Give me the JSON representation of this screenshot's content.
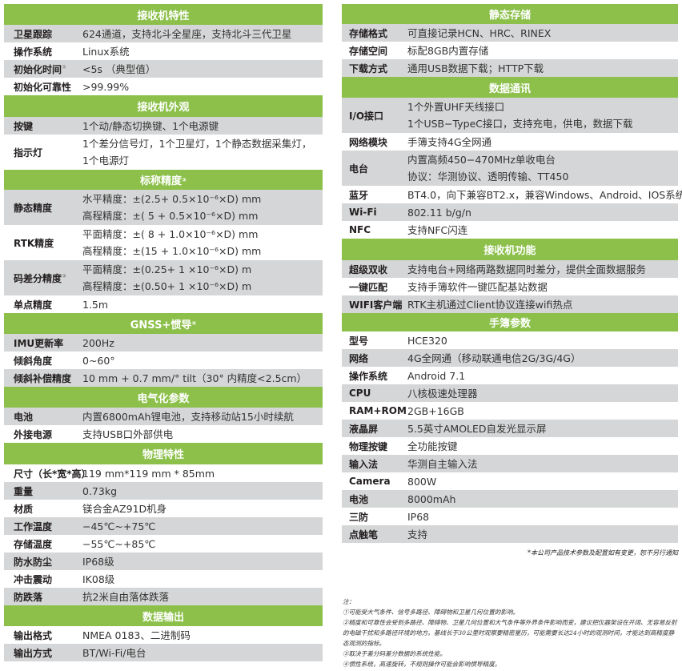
{
  "colors": {
    "header_green": "#8cc04b",
    "row_gray": "#d5d6d7"
  },
  "left_sections": [
    {
      "title": "接收机特性",
      "sup": "",
      "rows": [
        {
          "label": "卫星跟踪",
          "sup": "",
          "lines": [
            "624通道，支持北斗全星座，支持北斗三代卫星"
          ]
        },
        {
          "label": "操作系统",
          "sup": "",
          "lines": [
            "Linux系统"
          ]
        },
        {
          "label": "初始化时间",
          "sup": "①",
          "lines": [
            "<5s （典型值）"
          ]
        },
        {
          "label": "初始化可靠性",
          "sup": "",
          "lines": [
            ">99.99%"
          ]
        }
      ]
    },
    {
      "title": "接收机外观",
      "sup": "",
      "rows": [
        {
          "label": "按键",
          "sup": "",
          "lines": [
            "1个动/静态切换键、1个电源键"
          ]
        },
        {
          "label": "指示灯",
          "sup": "",
          "lines": [
            "1个差分信号灯，1个卫星灯，1个静态数据采集灯，",
            "1个电源灯"
          ]
        }
      ]
    },
    {
      "title": "标称精度",
      "sup": "②",
      "rows": [
        {
          "label": "静态精度",
          "sup": "",
          "lines": [
            "水平精度：±(2.5+ 0.5×10⁻⁶×D) mm",
            "高程精度：±( 5 + 0.5×10⁻⁶×D) mm"
          ]
        },
        {
          "label": "RTK精度",
          "sup": "",
          "lines": [
            "平面精度：±( 8 + 1.0×10⁻⁶×D) mm",
            "高程精度：±(15 + 1.0×10⁻⁶×D) mm"
          ]
        },
        {
          "label": "码差分精度",
          "sup": "③",
          "lines": [
            "平面精度：±(0.25+ 1 ×10⁻⁶×D) m",
            "高程精度：±(0.50+ 1 ×10⁻⁶×D) m"
          ]
        },
        {
          "label": "单点精度",
          "sup": "",
          "lines": [
            "1.5m"
          ]
        }
      ]
    },
    {
      "title": "GNSS+惯导",
      "sup": "④",
      "rows": [
        {
          "label": "IMU更新率",
          "sup": "",
          "lines": [
            "200Hz"
          ]
        },
        {
          "label": "倾斜角度",
          "sup": "",
          "lines": [
            "0~60°"
          ]
        },
        {
          "label": "倾斜补偿精度",
          "sup": "",
          "lines": [
            "10 mm + 0.7 mm/°  tilt（30° 内精度<2.5cm）"
          ]
        }
      ]
    },
    {
      "title": "电气化参数",
      "sup": "",
      "rows": [
        {
          "label": "电池",
          "sup": "",
          "lines": [
            "内置6800mAh锂电池，支持移动站15小时续航"
          ]
        },
        {
          "label": "外接电源",
          "sup": "",
          "lines": [
            "支持USB口外部供电"
          ]
        }
      ]
    },
    {
      "title": "物理特性",
      "sup": "",
      "rows": [
        {
          "label": "尺寸（长*宽*高）",
          "sup": "",
          "lines": [
            "119 mm*119 mm * 85mm"
          ]
        },
        {
          "label": "重量",
          "sup": "",
          "lines": [
            "0.73kg"
          ]
        },
        {
          "label": "材质",
          "sup": "",
          "lines": [
            "镁合金AZ91D机身"
          ]
        },
        {
          "label": "工作温度",
          "sup": "",
          "lines": [
            "−45℃~+75℃"
          ]
        },
        {
          "label": "存储温度",
          "sup": "",
          "lines": [
            "−55℃~+85℃"
          ]
        },
        {
          "label": "防水防尘",
          "sup": "",
          "lines": [
            "IP68级"
          ]
        },
        {
          "label": "冲击震动",
          "sup": "",
          "lines": [
            "IK08级"
          ]
        },
        {
          "label": "防跌落",
          "sup": "",
          "lines": [
            "抗2米自由落体跌落"
          ]
        }
      ]
    },
    {
      "title": "数据输出",
      "sup": "",
      "rows": [
        {
          "label": "输出格式",
          "sup": "",
          "lines": [
            "NMEA 0183、二进制码"
          ]
        },
        {
          "label": "输出方式",
          "sup": "",
          "lines": [
            "BT/Wi-Fi/电台"
          ]
        }
      ]
    }
  ],
  "right_sections": [
    {
      "title": "静态存储",
      "sup": "",
      "rows": [
        {
          "label": "存储格式",
          "sup": "",
          "lines": [
            "可直接记录HCN、HRC、RINEX"
          ]
        },
        {
          "label": "存储空间",
          "sup": "",
          "lines": [
            "标配8GB内置存储"
          ]
        },
        {
          "label": "下载方式",
          "sup": "",
          "lines": [
            "通用USB数据下载；HTTP下载"
          ]
        }
      ]
    },
    {
      "title": "数据通讯",
      "sup": "",
      "rows": [
        {
          "label": "I/O接口",
          "sup": "",
          "lines": [
            "1个外置UHF天线接口",
            "1个USB−TypeC接口，支持充电，供电，数据下载"
          ]
        },
        {
          "label": "网络模块",
          "sup": "",
          "lines": [
            "手簿支持4G全网通"
          ]
        },
        {
          "label": "电台",
          "sup": "",
          "lines": [
            "内置高频450−470MHz单收电台",
            "协议：华测协议、透明传输、TT450"
          ]
        },
        {
          "label": "蓝牙",
          "sup": "",
          "lines": [
            "BT4.0，向下兼容BT2.x，兼容Windows、Android、IOS系统"
          ]
        },
        {
          "label": "Wi-Fi",
          "sup": "",
          "lines": [
            "802.11 b/g/n"
          ]
        },
        {
          "label": "NFC",
          "sup": "",
          "lines": [
            "支持NFC闪连"
          ]
        }
      ]
    },
    {
      "title": "接收机功能",
      "sup": "",
      "rows": [
        {
          "label": "超级双收",
          "sup": "",
          "lines": [
            "支持电台+网络两路数据同时差分，提供全面数据服务"
          ]
        },
        {
          "label": "一键匹配",
          "sup": "",
          "lines": [
            "支持手簿软件一键匹配基站数据"
          ]
        },
        {
          "label": "WIFI客户端",
          "sup": "",
          "lines": [
            "RTK主机通过Client协议连接wifi热点"
          ]
        }
      ]
    },
    {
      "title": "手簿参数",
      "sup": "",
      "rows": [
        {
          "label": "型号",
          "sup": "",
          "lines": [
            "HCE320"
          ]
        },
        {
          "label": "网络",
          "sup": "",
          "lines": [
            "4G全网通（移动联通电信2G/3G/4G）"
          ]
        },
        {
          "label": "操作系统",
          "sup": "",
          "lines": [
            "Android 7.1"
          ]
        },
        {
          "label": "CPU",
          "sup": "",
          "lines": [
            "八核极速处理器"
          ]
        },
        {
          "label": "RAM+ROM",
          "sup": "",
          "lines": [
            "2GB+16GB"
          ]
        },
        {
          "label": "液晶屏",
          "sup": "",
          "lines": [
            "5.5英寸AMOLED自发光显示屏"
          ]
        },
        {
          "label": "物理按键",
          "sup": "",
          "lines": [
            "全功能按键"
          ]
        },
        {
          "label": "输入法",
          "sup": "",
          "lines": [
            "华测自主输入法"
          ]
        },
        {
          "label": "Camera",
          "sup": "",
          "lines": [
            "800W"
          ]
        },
        {
          "label": "电池",
          "sup": "",
          "lines": [
            "8000mAh"
          ]
        },
        {
          "label": "三防",
          "sup": "",
          "lines": [
            "IP68"
          ]
        },
        {
          "label": "点触笔",
          "sup": "",
          "lines": [
            "支持"
          ]
        }
      ]
    }
  ],
  "disclaimer": "*本公司产品技术参数及配置如有变更，恕不另行通知",
  "notes": {
    "title": "注：",
    "items": [
      "①可能受大气条件、信号多路径、障碍物和卫星几何位置的影响。",
      "②精度和可靠性会受到多路径、障碍物、卫星几何位置和大气条件等外界条件影响而变，建议把仪器架设在开阔、无容易反射的电磁干扰和多路径环境的地方。基线长于30公里时观察要精密星历，可能需要长达24小时的观测时间，才能达到高精度静态观测的指标。",
      "③取决于差分码差分数据的系统性能。",
      "④惯性系统，高速旋转，不规则操作可能会影响惯导精度。"
    ]
  }
}
